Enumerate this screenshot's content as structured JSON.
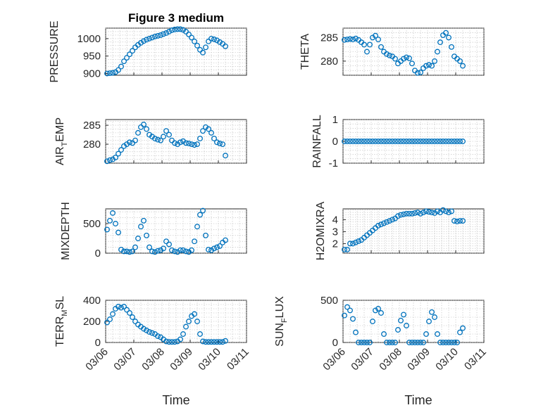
{
  "colors": {
    "series": "#0072BD",
    "axis": "#262626",
    "grid": "#b0b0b0"
  },
  "chart_data": [
    {
      "type": "scatter",
      "title": "Figure 3 medium",
      "ylabel": "PRESSURE",
      "xlabel": "",
      "ylim": [
        895,
        1030
      ],
      "yticks": [
        900,
        950,
        1000
      ],
      "ytick_labels": [
        "900",
        "950",
        "1000"
      ],
      "xlim": [
        0,
        5
      ],
      "grid": "on",
      "x": [
        0.05,
        0.15,
        0.25,
        0.35,
        0.45,
        0.55,
        0.65,
        0.75,
        0.85,
        0.95,
        1.05,
        1.15,
        1.25,
        1.35,
        1.45,
        1.55,
        1.65,
        1.75,
        1.85,
        1.95,
        2.05,
        2.15,
        2.25,
        2.35,
        2.45,
        2.55,
        2.65,
        2.75,
        2.85,
        2.95,
        3.05,
        3.15,
        3.25,
        3.35,
        3.45,
        3.55,
        3.65,
        3.75,
        3.85,
        3.95,
        4.05,
        4.15,
        4.25
      ],
      "y": [
        900,
        901,
        902,
        904,
        910,
        920,
        935,
        945,
        955,
        965,
        975,
        982,
        988,
        993,
        997,
        1000,
        1003,
        1006,
        1008,
        1010,
        1013,
        1016,
        1020,
        1024,
        1026,
        1027,
        1027,
        1025,
        1020,
        1012,
        1003,
        992,
        980,
        968,
        960,
        975,
        992,
        1000,
        998,
        995,
        990,
        985,
        978
      ]
    },
    {
      "type": "scatter",
      "ylabel": "THETA",
      "xlabel": "",
      "ylim": [
        277,
        287
      ],
      "yticks": [
        280,
        285
      ],
      "ytick_labels": [
        "280",
        "285"
      ],
      "xlim": [
        0,
        5
      ],
      "grid": "on",
      "x": [
        0.05,
        0.15,
        0.25,
        0.35,
        0.45,
        0.55,
        0.65,
        0.75,
        0.85,
        0.95,
        1.05,
        1.15,
        1.25,
        1.35,
        1.45,
        1.55,
        1.65,
        1.75,
        1.85,
        1.95,
        2.05,
        2.15,
        2.25,
        2.35,
        2.45,
        2.55,
        2.65,
        2.75,
        2.85,
        2.95,
        3.05,
        3.15,
        3.25,
        3.35,
        3.45,
        3.55,
        3.65,
        3.75,
        3.85,
        3.95,
        4.05,
        4.15,
        4.25
      ],
      "y": [
        284.5,
        284.6,
        284.7,
        284.6,
        284.8,
        284.5,
        284.0,
        283.5,
        282.0,
        283.5,
        285.0,
        285.4,
        284.6,
        283.0,
        282.0,
        281.5,
        281.2,
        281.0,
        280.5,
        279.5,
        280.0,
        280.5,
        280.8,
        280.6,
        279.5,
        278.0,
        277.5,
        277.6,
        278.5,
        279.0,
        279.2,
        279.0,
        280.0,
        282.0,
        284.0,
        285.5,
        286.0,
        285.0,
        283.0,
        281.0,
        280.5,
        280.0,
        279.0
      ]
    },
    {
      "type": "scatter",
      "ylabel": "AIR_TEMP",
      "xlabel": "",
      "ylim": [
        275,
        286.5
      ],
      "yticks": [
        280,
        285
      ],
      "ytick_labels": [
        "280",
        "285"
      ],
      "xlim": [
        0,
        5
      ],
      "grid": "on",
      "x": [
        0.05,
        0.15,
        0.25,
        0.35,
        0.45,
        0.55,
        0.65,
        0.75,
        0.85,
        0.95,
        1.05,
        1.15,
        1.25,
        1.35,
        1.45,
        1.55,
        1.65,
        1.75,
        1.85,
        1.95,
        2.05,
        2.15,
        2.25,
        2.35,
        2.45,
        2.55,
        2.65,
        2.75,
        2.85,
        2.95,
        3.05,
        3.15,
        3.25,
        3.35,
        3.45,
        3.55,
        3.65,
        3.75,
        3.85,
        3.95,
        4.05,
        4.15,
        4.25
      ],
      "y": [
        275.5,
        275.8,
        276.0,
        276.5,
        277.5,
        278.5,
        279.5,
        280.0,
        280.5,
        280.3,
        281.0,
        283.0,
        284.5,
        285.2,
        284.0,
        282.5,
        282.0,
        281.5,
        281.2,
        281.0,
        282.0,
        283.5,
        282.5,
        281.0,
        280.3,
        280.0,
        280.5,
        280.8,
        280.3,
        280.2,
        280.0,
        279.8,
        280.0,
        281.5,
        283.5,
        284.5,
        284.0,
        283.0,
        281.5,
        280.5,
        280.2,
        280.0,
        277.0
      ]
    },
    {
      "type": "scatter",
      "ylabel": "RAINFALL",
      "xlabel": "",
      "ylim": [
        -1,
        1
      ],
      "yticks": [
        -1,
        0,
        1
      ],
      "ytick_labels": [
        "-1",
        "0",
        "1"
      ],
      "xlim": [
        0,
        5
      ],
      "grid": "on",
      "x": [
        0.05,
        0.15,
        0.25,
        0.35,
        0.45,
        0.55,
        0.65,
        0.75,
        0.85,
        0.95,
        1.05,
        1.15,
        1.25,
        1.35,
        1.45,
        1.55,
        1.65,
        1.75,
        1.85,
        1.95,
        2.05,
        2.15,
        2.25,
        2.35,
        2.45,
        2.55,
        2.65,
        2.75,
        2.85,
        2.95,
        3.05,
        3.15,
        3.25,
        3.35,
        3.45,
        3.55,
        3.65,
        3.75,
        3.85,
        3.95,
        4.05,
        4.15,
        4.25
      ],
      "y": [
        0,
        0,
        0,
        0,
        0,
        0,
        0,
        0,
        0,
        0,
        0,
        0,
        0,
        0,
        0,
        0,
        0,
        0,
        0,
        0,
        0,
        0,
        0,
        0,
        0,
        0,
        0,
        0,
        0,
        0,
        0,
        0,
        0,
        0,
        0,
        0,
        0,
        0,
        0,
        0,
        0,
        0,
        0
      ]
    },
    {
      "type": "scatter",
      "ylabel": "MIXDEPTH",
      "xlabel": "",
      "ylim": [
        0,
        750
      ],
      "yticks": [
        0,
        500
      ],
      "ytick_labels": [
        "0",
        "500"
      ],
      "xlim": [
        0,
        5
      ],
      "grid": "on",
      "x": [
        0.05,
        0.15,
        0.25,
        0.35,
        0.45,
        0.55,
        0.65,
        0.75,
        0.85,
        0.95,
        1.05,
        1.15,
        1.25,
        1.35,
        1.45,
        1.55,
        1.65,
        1.75,
        1.85,
        1.95,
        2.05,
        2.15,
        2.25,
        2.35,
        2.45,
        2.55,
        2.65,
        2.75,
        2.85,
        2.95,
        3.05,
        3.15,
        3.25,
        3.35,
        3.45,
        3.55,
        3.65,
        3.75,
        3.85,
        3.95,
        4.05,
        4.15,
        4.25
      ],
      "y": [
        400,
        550,
        680,
        500,
        350,
        60,
        30,
        30,
        20,
        30,
        100,
        250,
        450,
        550,
        300,
        100,
        30,
        20,
        40,
        50,
        80,
        200,
        150,
        50,
        30,
        20,
        50,
        50,
        30,
        20,
        50,
        200,
        450,
        650,
        720,
        300,
        60,
        50,
        80,
        100,
        120,
        180,
        220
      ]
    },
    {
      "type": "scatter",
      "ylabel": "H2OMIXRA",
      "xlabel": "",
      "ylim": [
        1.2,
        4.9
      ],
      "yticks": [
        2,
        3,
        4
      ],
      "ytick_labels": [
        "2",
        "3",
        "4"
      ],
      "xlim": [
        0,
        5
      ],
      "grid": "on",
      "x": [
        0.05,
        0.15,
        0.25,
        0.35,
        0.45,
        0.55,
        0.65,
        0.75,
        0.85,
        0.95,
        1.05,
        1.15,
        1.25,
        1.35,
        1.45,
        1.55,
        1.65,
        1.75,
        1.85,
        1.95,
        2.05,
        2.15,
        2.25,
        2.35,
        2.45,
        2.55,
        2.65,
        2.75,
        2.85,
        2.95,
        3.05,
        3.15,
        3.25,
        3.35,
        3.45,
        3.55,
        3.65,
        3.75,
        3.85,
        3.95,
        4.05,
        4.15,
        4.25
      ],
      "y": [
        1.5,
        1.5,
        2.0,
        2.0,
        2.1,
        2.2,
        2.3,
        2.5,
        2.7,
        2.9,
        3.1,
        3.3,
        3.5,
        3.6,
        3.7,
        3.8,
        3.9,
        4.0,
        4.1,
        4.3,
        4.4,
        4.45,
        4.5,
        4.5,
        4.5,
        4.55,
        4.6,
        4.5,
        4.6,
        4.7,
        4.65,
        4.6,
        4.55,
        4.7,
        4.6,
        4.8,
        4.7,
        4.6,
        4.7,
        3.9,
        3.85,
        3.9,
        3.9
      ]
    },
    {
      "type": "scatter",
      "ylabel": "TERR_MSL",
      "xlabel": "Time",
      "ylim": [
        0,
        400
      ],
      "yticks": [
        0,
        200,
        400
      ],
      "ytick_labels": [
        "0",
        "200",
        "400"
      ],
      "xlim": [
        0,
        5
      ],
      "xtick_labels": [
        "03/06",
        "03/07",
        "03/08",
        "03/09",
        "03/10",
        "03/11"
      ],
      "grid": "on",
      "x": [
        0.05,
        0.15,
        0.25,
        0.35,
        0.45,
        0.55,
        0.65,
        0.75,
        0.85,
        0.95,
        1.05,
        1.15,
        1.25,
        1.35,
        1.45,
        1.55,
        1.65,
        1.75,
        1.85,
        1.95,
        2.05,
        2.15,
        2.25,
        2.35,
        2.45,
        2.55,
        2.65,
        2.75,
        2.85,
        2.95,
        3.05,
        3.15,
        3.25,
        3.35,
        3.45,
        3.55,
        3.65,
        3.75,
        3.85,
        3.95,
        4.05,
        4.15,
        4.25
      ],
      "y": [
        190,
        220,
        270,
        320,
        340,
        330,
        340,
        310,
        280,
        240,
        200,
        170,
        150,
        130,
        115,
        100,
        90,
        80,
        60,
        50,
        30,
        10,
        5,
        5,
        5,
        10,
        30,
        80,
        150,
        200,
        250,
        270,
        200,
        80,
        10,
        5,
        5,
        5,
        5,
        5,
        5,
        5,
        15
      ]
    },
    {
      "type": "scatter",
      "ylabel": "SUN_FLUX",
      "xlabel": "Time",
      "ylim": [
        0,
        500
      ],
      "yticks": [
        0,
        500
      ],
      "ytick_labels": [
        "0",
        "500"
      ],
      "xlim": [
        0,
        5
      ],
      "xtick_labels": [
        "03/06",
        "03/07",
        "03/08",
        "03/09",
        "03/10",
        "03/11"
      ],
      "grid": "on",
      "x": [
        0.05,
        0.15,
        0.25,
        0.35,
        0.45,
        0.55,
        0.65,
        0.75,
        0.85,
        0.95,
        1.05,
        1.15,
        1.25,
        1.35,
        1.45,
        1.55,
        1.65,
        1.75,
        1.85,
        1.95,
        2.05,
        2.15,
        2.25,
        2.35,
        2.45,
        2.55,
        2.65,
        2.75,
        2.85,
        2.95,
        3.05,
        3.15,
        3.25,
        3.35,
        3.45,
        3.55,
        3.65,
        3.75,
        3.85,
        3.95,
        4.05,
        4.15,
        4.25
      ],
      "y": [
        320,
        420,
        380,
        280,
        120,
        0,
        0,
        0,
        0,
        0,
        250,
        380,
        400,
        350,
        100,
        0,
        0,
        0,
        0,
        150,
        260,
        330,
        200,
        0,
        0,
        0,
        0,
        0,
        0,
        100,
        250,
        360,
        300,
        100,
        0,
        0,
        0,
        0,
        0,
        0,
        0,
        120,
        170
      ]
    }
  ]
}
